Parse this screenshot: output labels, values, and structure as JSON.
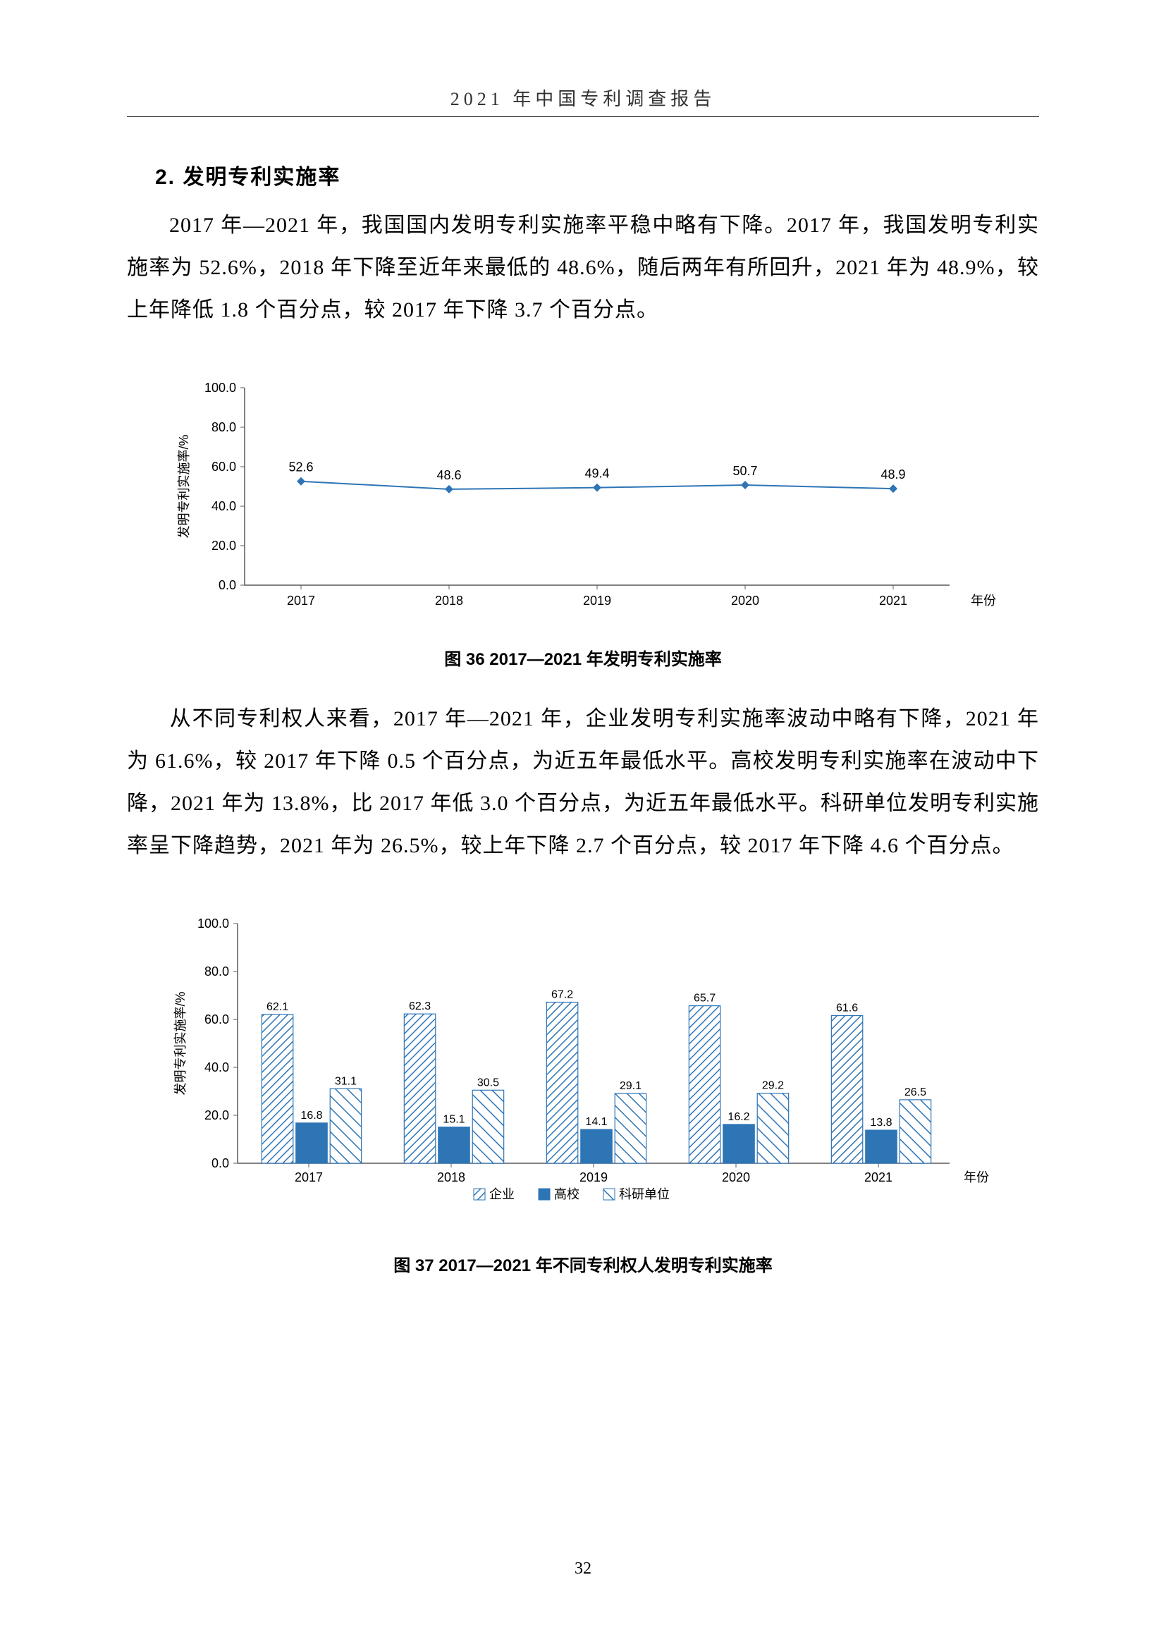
{
  "header": {
    "title": "2021 年中国专利调查报告"
  },
  "section": {
    "heading": "2. 发明专利实施率",
    "paragraph1": "2017 年—2021 年，我国国内发明专利实施率平稳中略有下降。2017 年，我国发明专利实施率为 52.6%，2018 年下降至近年来最低的 48.6%，随后两年有所回升，2021 年为 48.9%，较上年降低 1.8 个百分点，较 2017 年下降 3.7 个百分点。",
    "paragraph2": "从不同专利权人来看，2017 年—2021 年，企业发明专利实施率波动中略有下降，2021 年为 61.6%，较 2017 年下降 0.5 个百分点，为近五年最低水平。高校发明专利实施率在波动中下降，2021 年为 13.8%，比 2017 年低 3.0 个百分点，为近五年最低水平。科研单位发明专利实施率呈下降趋势，2021 年为 26.5%，较上年下降 2.7 个百分点，较 2017 年下降 4.6 个百分点。"
  },
  "chart36": {
    "type": "line",
    "caption": "图 36  2017—2021 年发明专利实施率",
    "ylabel": "发明专利实施率/%",
    "xlabel": "年份",
    "categories": [
      "2017",
      "2018",
      "2019",
      "2020",
      "2021"
    ],
    "values": [
      52.6,
      48.6,
      49.4,
      50.7,
      48.9
    ],
    "ylim": [
      0,
      100
    ],
    "ytick_step": 20,
    "yticks": [
      "0.0",
      "20.0",
      "40.0",
      "60.0",
      "80.0",
      "100.0"
    ],
    "line_color": "#2e75b6",
    "marker_color": "#2e75b6",
    "marker_size": 6,
    "line_width": 2,
    "label_fontsize": 18,
    "tick_fontsize": 18,
    "value_fontsize": 18,
    "axis_color": "#595959",
    "text_color": "#000000"
  },
  "chart37": {
    "type": "grouped-bar",
    "caption": "图 37  2017—2021 年不同专利权人发明专利实施率",
    "ylabel": "发明专利实施率/%",
    "xlabel": "年份",
    "categories": [
      "2017",
      "2018",
      "2019",
      "2020",
      "2021"
    ],
    "series": [
      {
        "name": "企业",
        "pattern": "diag-right",
        "color": "#2e75b6",
        "values": [
          62.1,
          62.3,
          67.2,
          65.7,
          61.6
        ]
      },
      {
        "name": "高校",
        "pattern": "solid",
        "color": "#2e75b6",
        "values": [
          16.8,
          15.1,
          14.1,
          16.2,
          13.8
        ]
      },
      {
        "name": "科研单位",
        "pattern": "diag-left",
        "color": "#2e75b6",
        "values": [
          31.1,
          30.5,
          29.1,
          29.2,
          26.5
        ]
      }
    ],
    "ylim": [
      0,
      100
    ],
    "ytick_step": 20,
    "yticks": [
      "0.0",
      "20.0",
      "40.0",
      "60.0",
      "80.0",
      "100.0"
    ],
    "bar_group_width": 0.7,
    "label_fontsize": 18,
    "tick_fontsize": 18,
    "value_fontsize": 16,
    "axis_color": "#595959",
    "text_color": "#000000",
    "legend_labels": [
      "企业",
      "高校",
      "科研单位"
    ]
  },
  "page_number": "32"
}
